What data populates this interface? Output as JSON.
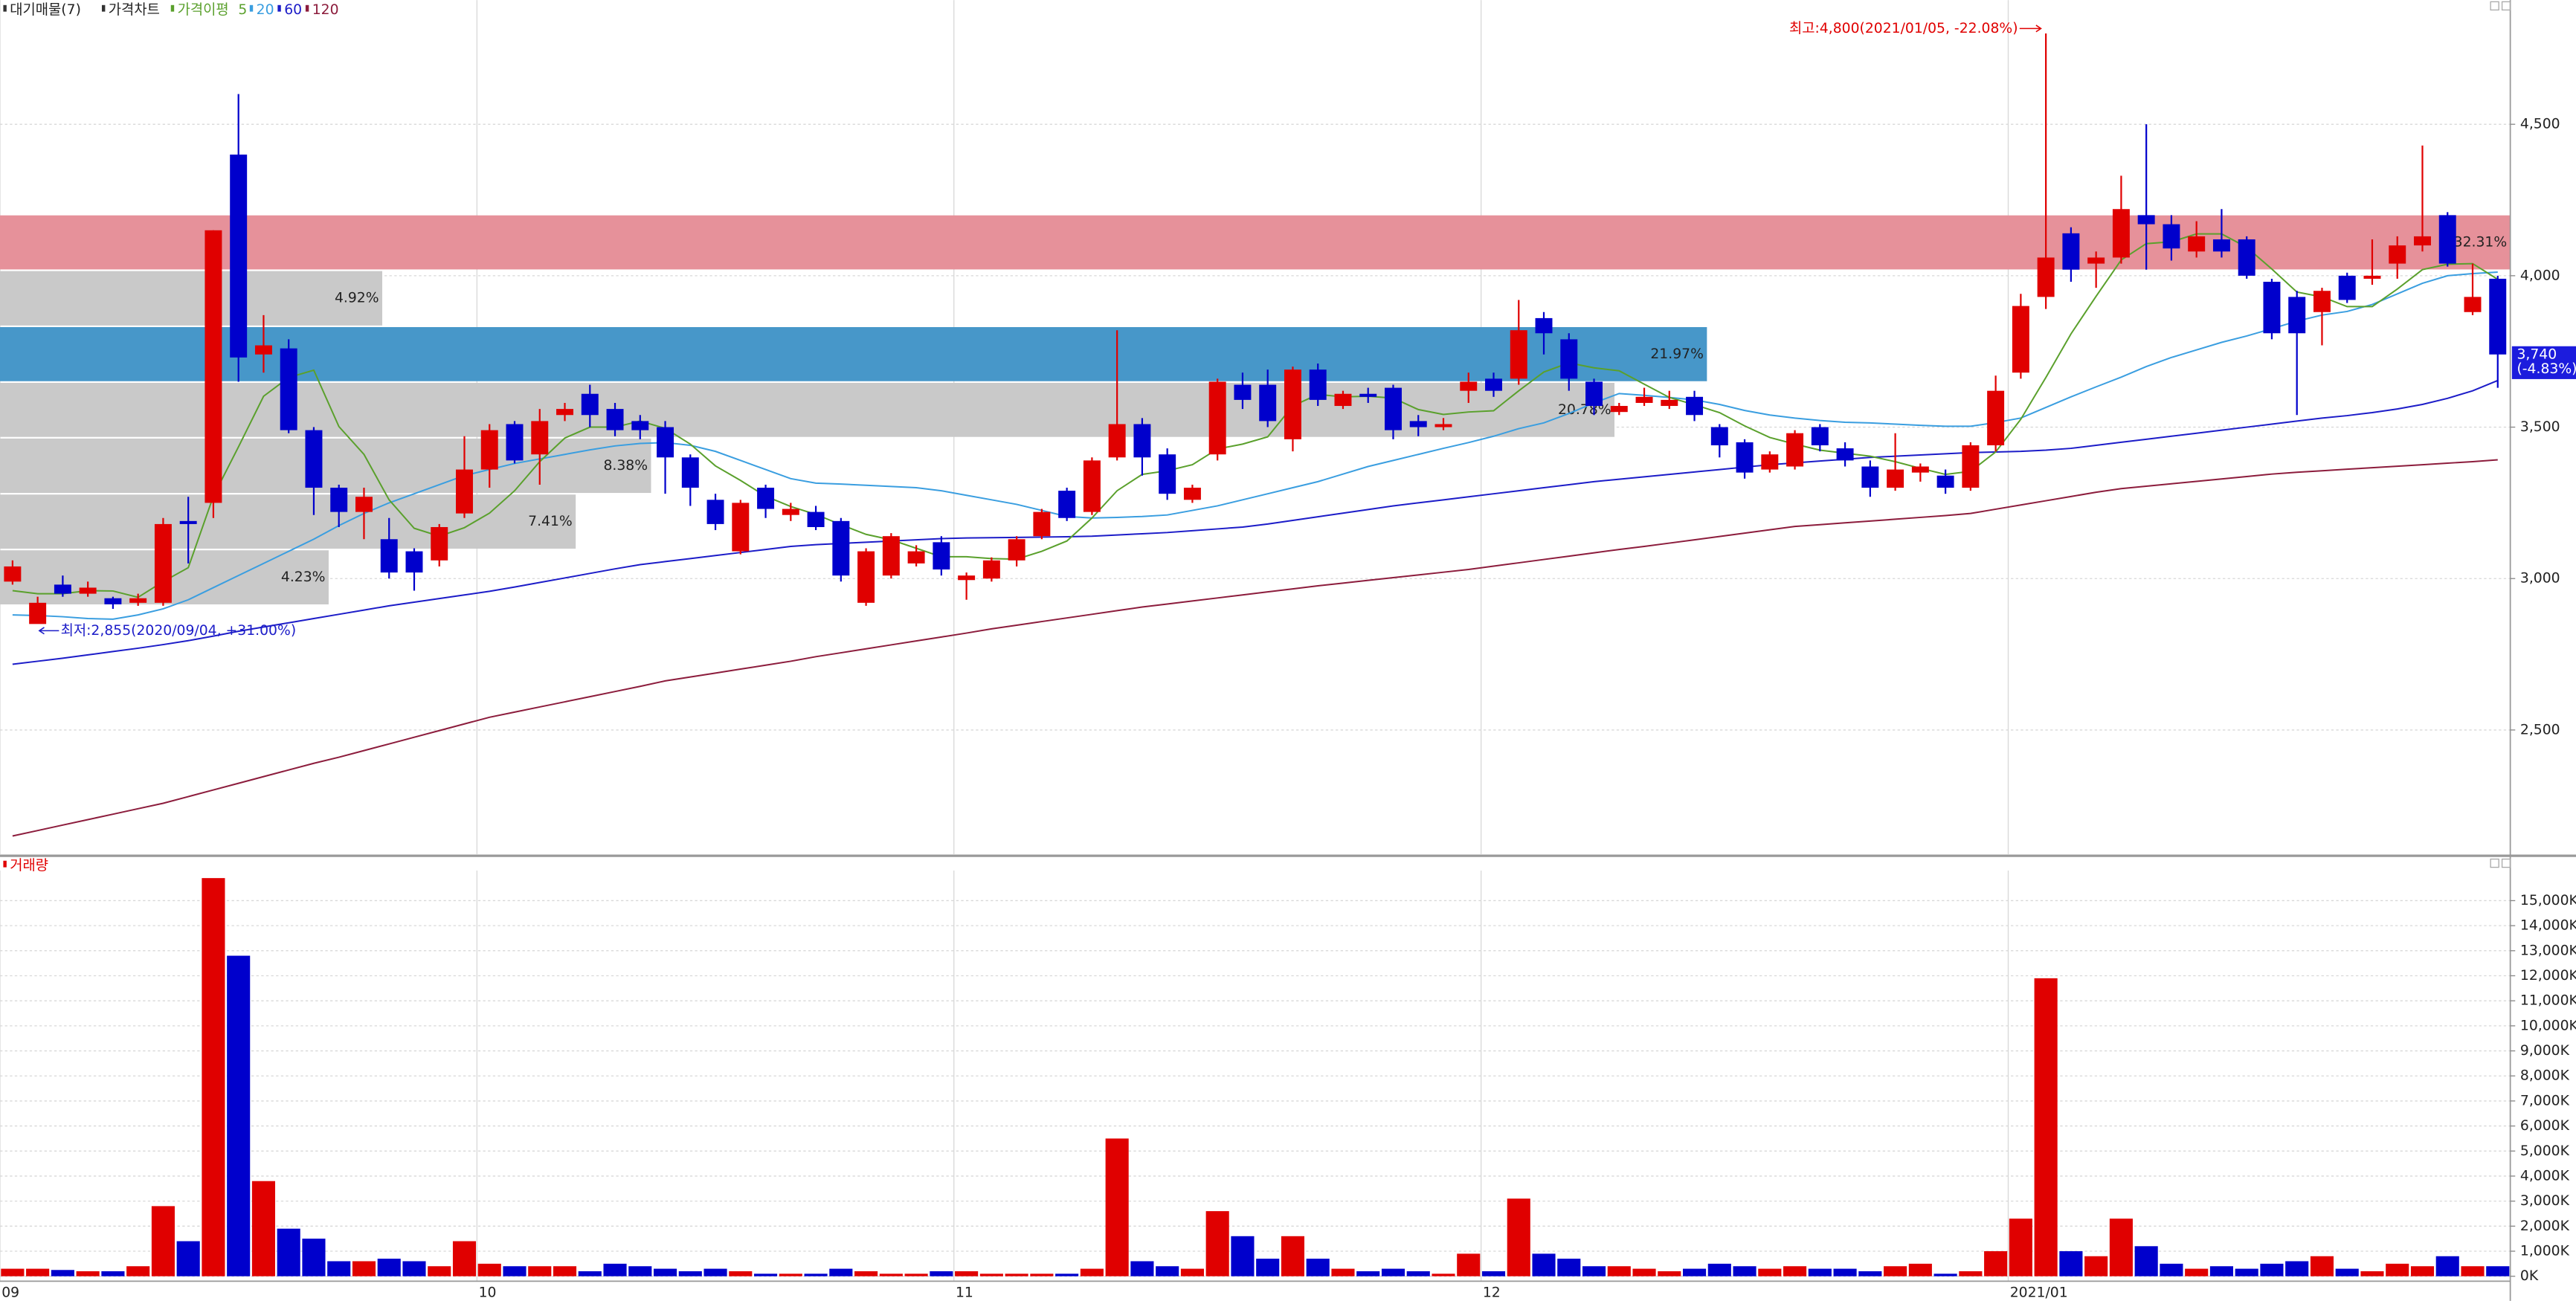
{
  "chart_data": [
    {
      "type": "candlestick",
      "legend": {
        "profile": "대기매물(7)",
        "price": "가격차트",
        "ma_title": "가격이평"
      },
      "up_color": "#e00000",
      "down_color": "#0000cc",
      "ylim": [
        2090,
        4910
      ],
      "yticks": [
        {
          "value": 2500,
          "label": "2,500"
        },
        {
          "value": 3000,
          "label": "3,000"
        },
        {
          "value": 3500,
          "label": "3,500"
        },
        {
          "value": 4000,
          "label": "4,000"
        },
        {
          "value": 4500,
          "label": "4,500"
        }
      ],
      "grid": true,
      "open": [
        2990,
        2850,
        2980,
        2950,
        2935,
        2920,
        2920,
        3190,
        3250,
        4400,
        3740,
        3760,
        3490,
        3300,
        3220,
        3130,
        3090,
        3060,
        3215,
        3360,
        3510,
        3410,
        3540,
        3610,
        3560,
        3520,
        3500,
        3400,
        3260,
        3090,
        3300,
        3210,
        3220,
        3190,
        2920,
        3010,
        3050,
        3120,
        2995,
        3000,
        3060,
        3140,
        3290,
        3220,
        3400,
        3510,
        3410,
        3260,
        3410,
        3640,
        3640,
        3460,
        3690,
        3570,
        3610,
        3630,
        3520,
        3500,
        3620,
        3660,
        3660,
        3860,
        3790,
        3650,
        3550,
        3580,
        3570,
        3600,
        3500,
        3450,
        3360,
        3370,
        3500,
        3430,
        3370,
        3300,
        3350,
        3340,
        3300,
        3440,
        3680,
        3930,
        4140,
        4040,
        4060,
        4200,
        4170,
        4080,
        4120,
        4120,
        3980,
        3930,
        3880,
        4000,
        3990,
        4040,
        4100,
        4200,
        3880,
        3990
      ],
      "high": [
        3060,
        2940,
        3010,
        2990,
        2940,
        2950,
        3200,
        3270,
        4150,
        4600,
        3870,
        3790,
        3500,
        3310,
        3300,
        3200,
        3100,
        3180,
        3470,
        3510,
        3520,
        3560,
        3580,
        3640,
        3580,
        3540,
        3520,
        3410,
        3280,
        3260,
        3310,
        3250,
        3240,
        3200,
        3100,
        3150,
        3110,
        3140,
        3020,
        3070,
        3140,
        3230,
        3300,
        3400,
        3820,
        3530,
        3430,
        3310,
        3660,
        3680,
        3690,
        3700,
        3710,
        3620,
        3630,
        3640,
        3540,
        3530,
        3680,
        3680,
        3920,
        3880,
        3810,
        3660,
        3580,
        3630,
        3620,
        3620,
        3510,
        3460,
        3420,
        3490,
        3510,
        3450,
        3390,
        3480,
        3380,
        3360,
        3450,
        3670,
        3940,
        4800,
        4160,
        4080,
        4330,
        4500,
        4200,
        4180,
        4220,
        4130,
        3990,
        3950,
        3960,
        4010,
        4120,
        4130,
        4430,
        4210,
        4040,
        4000
      ],
      "low": [
        2980,
        2855,
        2940,
        2940,
        2900,
        2910,
        2910,
        3050,
        3200,
        3650,
        3680,
        3480,
        3210,
        3170,
        3130,
        3000,
        2960,
        3040,
        3200,
        3300,
        3380,
        3310,
        3520,
        3500,
        3470,
        3460,
        3280,
        3240,
        3160,
        3080,
        3200,
        3190,
        3160,
        2990,
        2910,
        3000,
        3040,
        3010,
        2930,
        2990,
        3040,
        3130,
        3190,
        3210,
        3390,
        3340,
        3260,
        3250,
        3390,
        3560,
        3500,
        3420,
        3570,
        3560,
        3580,
        3460,
        3470,
        3490,
        3580,
        3600,
        3640,
        3740,
        3620,
        3540,
        3540,
        3570,
        3560,
        3520,
        3400,
        3330,
        3350,
        3360,
        3420,
        3370,
        3270,
        3290,
        3320,
        3280,
        3290,
        3420,
        3660,
        3890,
        3980,
        3960,
        4040,
        4020,
        4050,
        4060,
        4060,
        3990,
        3790,
        3540,
        3770,
        3910,
        3970,
        3990,
        4080,
        4030,
        3870,
        3630
      ],
      "close": [
        3040,
        2920,
        2950,
        2970,
        2915,
        2935,
        3180,
        3180,
        4150,
        3730,
        3770,
        3490,
        3300,
        3220,
        3270,
        3020,
        3020,
        3170,
        3360,
        3490,
        3390,
        3520,
        3560,
        3540,
        3490,
        3490,
        3400,
        3300,
        3180,
        3250,
        3230,
        3230,
        3170,
        3010,
        3090,
        3140,
        3090,
        3030,
        3010,
        3060,
        3130,
        3220,
        3200,
        3390,
        3510,
        3400,
        3280,
        3300,
        3650,
        3590,
        3520,
        3690,
        3590,
        3610,
        3600,
        3490,
        3500,
        3510,
        3650,
        3620,
        3820,
        3810,
        3660,
        3570,
        3570,
        3600,
        3590,
        3540,
        3440,
        3350,
        3410,
        3480,
        3440,
        3390,
        3300,
        3360,
        3370,
        3300,
        3440,
        3620,
        3900,
        4060,
        4020,
        4060,
        4220,
        4170,
        4090,
        4130,
        4080,
        4000,
        3810,
        3810,
        3950,
        3920,
        4000,
        4100,
        4130,
        4040,
        3930,
        3740
      ],
      "series": [
        {
          "name": "120",
          "color": "#8c1c3c",
          "values": [
            2150,
            2168,
            2186,
            2204,
            2222,
            2240,
            2258,
            2280,
            2302,
            2324,
            2346,
            2368,
            2390,
            2410,
            2432,
            2454,
            2476,
            2498,
            2520,
            2542,
            2559,
            2576,
            2593,
            2610,
            2627,
            2644,
            2662,
            2675,
            2688,
            2701,
            2714,
            2727,
            2742,
            2755,
            2768,
            2781,
            2794,
            2807,
            2820,
            2834,
            2846,
            2858,
            2870,
            2882,
            2894,
            2906,
            2916,
            2926,
            2936,
            2946,
            2956,
            2966,
            2976,
            2985,
            2994,
            3003,
            3012,
            3021,
            3030,
            3041,
            3052,
            3063,
            3074,
            3085,
            3096,
            3106,
            3117,
            3128,
            3139,
            3150,
            3161,
            3172,
            3178,
            3184,
            3190,
            3196,
            3202,
            3208,
            3215,
            3229,
            3243,
            3257,
            3271,
            3285,
            3297,
            3305,
            3313,
            3321,
            3329,
            3337,
            3345,
            3351,
            3356,
            3361,
            3366,
            3371,
            3376,
            3381,
            3386,
            3392
          ]
        },
        {
          "name": "60",
          "color": "#1c1cc8",
          "values": [
            2717,
            2727,
            2737,
            2748,
            2759,
            2770,
            2782,
            2795,
            2810,
            2826,
            2840,
            2854,
            2868,
            2882,
            2896,
            2910,
            2922,
            2934,
            2946,
            2958,
            2972,
            2987,
            3002,
            3017,
            3032,
            3046,
            3056,
            3066,
            3076,
            3086,
            3096,
            3106,
            3112,
            3116,
            3120,
            3124,
            3128,
            3132,
            3134,
            3135,
            3136,
            3137,
            3138,
            3140,
            3144,
            3148,
            3152,
            3158,
            3164,
            3170,
            3180,
            3192,
            3204,
            3216,
            3228,
            3240,
            3250,
            3260,
            3270,
            3280,
            3290,
            3300,
            3310,
            3320,
            3328,
            3336,
            3344,
            3352,
            3360,
            3368,
            3376,
            3382,
            3388,
            3394,
            3400,
            3404,
            3408,
            3412,
            3416,
            3418,
            3420,
            3424,
            3430,
            3440,
            3450,
            3460,
            3470,
            3480,
            3490,
            3500,
            3510,
            3520,
            3530,
            3538,
            3548,
            3560,
            3575,
            3595,
            3620,
            3654
          ]
        },
        {
          "name": "20",
          "color": "#3a9ee0",
          "values": [
            2880,
            2878,
            2874,
            2868,
            2866,
            2880,
            2900,
            2930,
            2970,
            3010,
            3050,
            3090,
            3130,
            3175,
            3215,
            3250,
            3280,
            3310,
            3340,
            3360,
            3380,
            3395,
            3410,
            3425,
            3438,
            3446,
            3449,
            3440,
            3420,
            3390,
            3360,
            3330,
            3315,
            3312,
            3308,
            3304,
            3300,
            3290,
            3275,
            3260,
            3245,
            3225,
            3205,
            3200,
            3202,
            3205,
            3210,
            3225,
            3240,
            3260,
            3280,
            3300,
            3320,
            3345,
            3370,
            3390,
            3410,
            3430,
            3449,
            3470,
            3495,
            3514,
            3545,
            3580,
            3611,
            3605,
            3598,
            3590,
            3575,
            3555,
            3540,
            3530,
            3522,
            3516,
            3514,
            3510,
            3506,
            3503,
            3503,
            3515,
            3530,
            3565,
            3600,
            3633,
            3665,
            3700,
            3730,
            3755,
            3780,
            3801,
            3825,
            3850,
            3870,
            3882,
            3905,
            3940,
            3975,
            4000,
            4007,
            4012
          ]
        },
        {
          "name": "5",
          "color": "#5aa02c",
          "values": [
            2960,
            2950,
            2950,
            2960,
            2959,
            2938,
            2990,
            3036,
            3272,
            3435,
            3602,
            3664,
            3688,
            3502,
            3410,
            3260,
            3166,
            3140,
            3168,
            3216,
            3290,
            3386,
            3464,
            3500,
            3500,
            3520,
            3496,
            3444,
            3372,
            3324,
            3272,
            3238,
            3212,
            3178,
            3146,
            3128,
            3100,
            3072,
            3072,
            3066,
            3064,
            3090,
            3124,
            3200,
            3290,
            3344,
            3356,
            3376,
            3428,
            3444,
            3468,
            3570,
            3608,
            3600,
            3602,
            3596,
            3558,
            3542,
            3550,
            3554,
            3620,
            3682,
            3712,
            3696,
            3686,
            3642,
            3598,
            3574,
            3548,
            3504,
            3466,
            3444,
            3424,
            3414,
            3404,
            3386,
            3364,
            3344,
            3354,
            3418,
            3526,
            3664,
            3808,
            3932,
            4052,
            4106,
            4112,
            4138,
            4138,
            4094,
            4022,
            3946,
            3930,
            3898,
            3898,
            3956,
            4020,
            4038,
            4040,
            3988
          ]
        }
      ],
      "profile": {
        "edges": [
          2912,
          3096,
          3280,
          3465,
          3649,
          3833,
          4018,
          4202
        ],
        "values": [
          4.23,
          7.41,
          8.38,
          20.78,
          21.97,
          4.92,
          32.31
        ],
        "value_labels": [
          "4.23%",
          "7.41%",
          "8.38%",
          "20.78%",
          "21.97%",
          "4.92%",
          "32.31%"
        ],
        "colors": [
          "#c9c9c9",
          "#c9c9c9",
          "#c9c9c9",
          "#c9c9c9",
          "#4797c9",
          "#c9c9c9",
          "#e6919a"
        ]
      },
      "high_note": {
        "text": "최고:4,800(2021/01/05, -22.08%)",
        "color": "#e00000"
      },
      "low_note": {
        "text": "최저:2,855(2020/09/04, +31.00%)",
        "color": "#1c1cc8"
      },
      "last_label": "3,740",
      "last_change_label": "(-4.83%)",
      "last_color": "#1c1cdd"
    },
    {
      "type": "bar",
      "title": "거래량",
      "title_color": "#e00000",
      "categories": [
        "09",
        null,
        null,
        null,
        null,
        null,
        null,
        null,
        null,
        null,
        null,
        null,
        null,
        null,
        null,
        null,
        null,
        null,
        null,
        "10",
        null,
        null,
        null,
        null,
        null,
        null,
        null,
        null,
        null,
        null,
        null,
        null,
        null,
        null,
        null,
        null,
        null,
        null,
        "11",
        null,
        null,
        null,
        null,
        null,
        null,
        null,
        null,
        null,
        null,
        null,
        null,
        null,
        null,
        null,
        null,
        null,
        null,
        null,
        null,
        "12",
        null,
        null,
        null,
        null,
        null,
        null,
        null,
        null,
        null,
        null,
        null,
        null,
        null,
        null,
        null,
        null,
        null,
        null,
        null,
        null,
        "2021/01",
        null,
        null,
        null,
        null,
        null,
        null,
        null,
        null,
        null,
        null,
        null,
        null,
        null,
        null,
        null,
        null,
        null,
        null,
        null
      ],
      "values": [
        300,
        300,
        250,
        200,
        200,
        400,
        2800,
        1400,
        15900,
        12800,
        3800,
        1900,
        1500,
        600,
        600,
        700,
        600,
        400,
        1400,
        500,
        400,
        400,
        400,
        200,
        500,
        400,
        300,
        200,
        300,
        200,
        100,
        100,
        100,
        300,
        200,
        100,
        100,
        200,
        200,
        100,
        100,
        100,
        100,
        300,
        5500,
        600,
        400,
        300,
        2600,
        1600,
        700,
        1600,
        700,
        300,
        200,
        300,
        200,
        100,
        900,
        200,
        3100,
        900,
        700,
        400,
        400,
        300,
        200,
        300,
        500,
        400,
        300,
        400,
        300,
        300,
        200,
        400,
        500,
        100,
        200,
        1000,
        2300,
        11900,
        1000,
        800,
        2300,
        1200,
        500,
        300,
        400,
        300,
        500,
        600,
        800,
        300,
        200,
        500,
        400,
        800,
        400,
        400
      ],
      "ylim": [
        0,
        16200
      ],
      "yticks": [
        {
          "value": 0,
          "label": "0K"
        },
        {
          "value": 1000,
          "label": "1,000K"
        },
        {
          "value": 2000,
          "label": "2,000K"
        },
        {
          "value": 3000,
          "label": "3,000K"
        },
        {
          "value": 4000,
          "label": "4,000K"
        },
        {
          "value": 5000,
          "label": "5,000K"
        },
        {
          "value": 6000,
          "label": "6,000K"
        },
        {
          "value": 7000,
          "label": "7,000K"
        },
        {
          "value": 8000,
          "label": "8,000K"
        },
        {
          "value": 9000,
          "label": "9,000K"
        },
        {
          "value": 10000,
          "label": "10,000K"
        },
        {
          "value": 11000,
          "label": "11,000K"
        },
        {
          "value": 12000,
          "label": "12,000K"
        },
        {
          "value": 13000,
          "label": "13,000K"
        },
        {
          "value": 14000,
          "label": "14,000K"
        },
        {
          "value": 15000,
          "label": "15,000K"
        }
      ],
      "grid": true
    }
  ]
}
